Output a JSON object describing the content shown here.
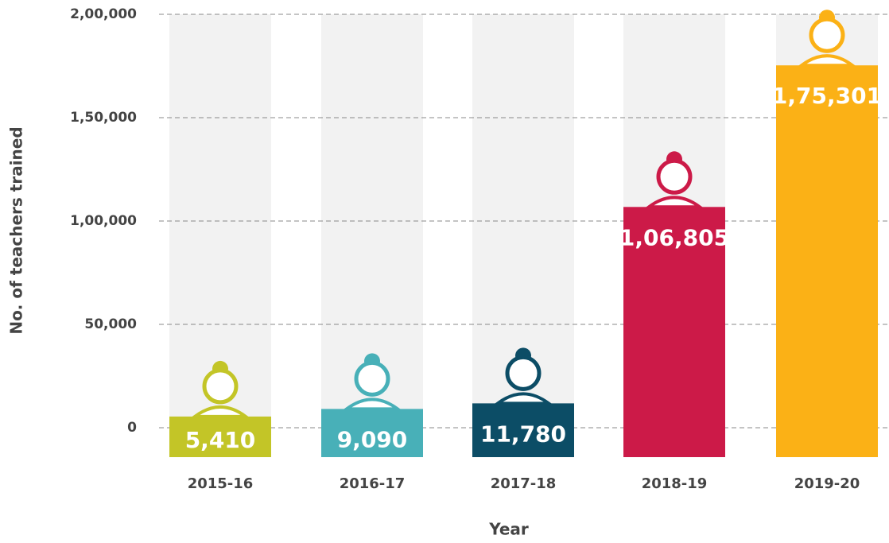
{
  "chart_data": {
    "type": "bar",
    "x_label": "Year",
    "y_label": "No. of teachers trained",
    "categories": [
      "2015-16",
      "2016-17",
      "2017-18",
      "2018-19",
      "2019-20"
    ],
    "values": [
      5410,
      9090,
      11780,
      106805,
      175301
    ],
    "value_labels": [
      "5,410",
      "9,090",
      "11,780",
      "1,06,805",
      "1,75,301"
    ],
    "colors": [
      "#c3c527",
      "#48b0b8",
      "#0c4d66",
      "#cc1a48",
      "#fbb116"
    ],
    "ylim": [
      0,
      200000
    ],
    "yticks": [
      0,
      {
        "value": 50000,
        "label": "50,000"
      },
      {
        "value": 100000,
        "label": "1,00,000"
      },
      {
        "value": 150000,
        "label": "1,50,000"
      },
      {
        "value": 200000,
        "label": "2,00,000"
      }
    ],
    "grid": true
  }
}
